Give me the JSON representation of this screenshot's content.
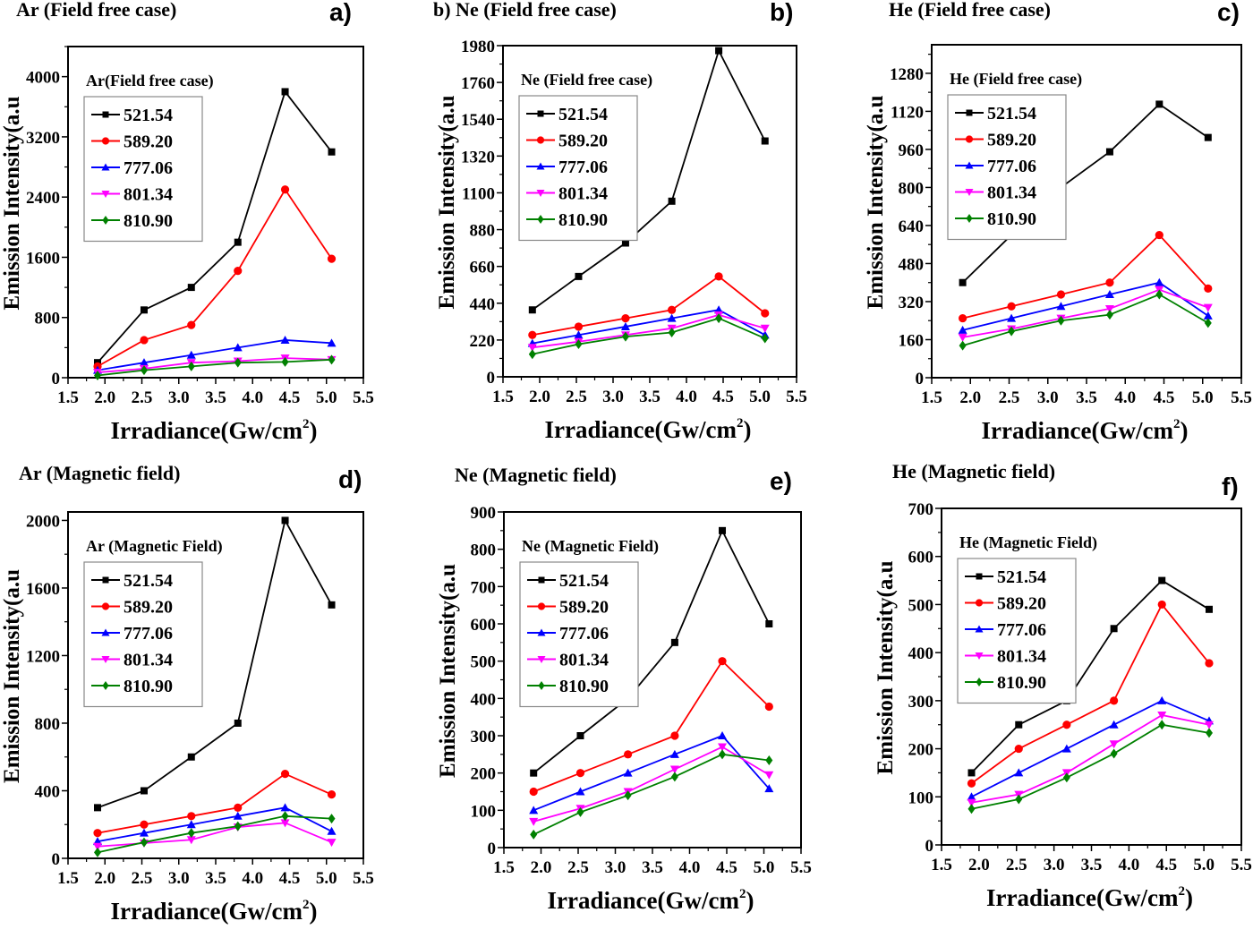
{
  "chart_data": [
    {
      "id": "a",
      "type": "line",
      "title": "Ar (Field free case)",
      "panel_letter": "a)",
      "legend_title": "Ar(Field free case)",
      "legend_position": "top-left",
      "xlabel": "Irradiance(Gw/cm",
      "xlabel_sup": "2",
      "xlabel_close": ")",
      "ylabel": "Emission Intensity(a.u",
      "xlim": [
        1.5,
        5.5
      ],
      "ylim": [
        0,
        4000
      ],
      "ymax_axis": 4400,
      "xticks": [
        "1.5",
        "2.0",
        "2.5",
        "3.0",
        "3.5",
        "4.0",
        "4.5",
        "5.0",
        "5.5"
      ],
      "yticks": [
        "0",
        "800",
        "1600",
        "2400",
        "3200",
        "4000"
      ],
      "x": [
        1.9,
        2.53,
        3.17,
        3.8,
        4.44,
        5.07
      ],
      "series": [
        {
          "name": "521.54",
          "color": "#000000",
          "marker": "square",
          "values": [
            200,
            900,
            1200,
            1800,
            3800,
            3000
          ]
        },
        {
          "name": "589.20",
          "color": "#ff0000",
          "marker": "circle",
          "values": [
            150,
            500,
            700,
            1420,
            2500,
            1580
          ]
        },
        {
          "name": "777.06",
          "color": "#0000ff",
          "marker": "triangle-up",
          "values": [
            100,
            200,
            300,
            400,
            500,
            460
          ]
        },
        {
          "name": "801.34",
          "color": "#ff00ff",
          "marker": "triangle-down",
          "values": [
            70,
            120,
            200,
            220,
            260,
            240
          ]
        },
        {
          "name": "810.90",
          "color": "#008000",
          "marker": "diamond",
          "values": [
            30,
            100,
            150,
            200,
            210,
            240
          ]
        }
      ]
    },
    {
      "id": "b",
      "type": "line",
      "title": "b) Ne (Field free case)",
      "panel_letter": "b)",
      "legend_title": "Ne (Field free case)",
      "legend_position": "top-left",
      "xlabel": "Irradiance(Gw/cm",
      "xlabel_sup": "2",
      "xlabel_close": ")",
      "ylabel": "Emission Intensity(a.u",
      "xlim": [
        1.5,
        5.5
      ],
      "ylim": [
        0,
        1980
      ],
      "ymax_axis": 1980,
      "xticks": [
        "1.5",
        "2.0",
        "2.5",
        "3.0",
        "3.5",
        "4.0",
        "4.5",
        "5.0",
        "5.5"
      ],
      "yticks": [
        "0",
        "220",
        "440",
        "660",
        "880",
        "1100",
        "1320",
        "1540",
        "1760",
        "1980"
      ],
      "x": [
        1.9,
        2.53,
        3.17,
        3.8,
        4.44,
        5.07
      ],
      "series": [
        {
          "name": "521.54",
          "color": "#000000",
          "marker": "square",
          "values": [
            400,
            600,
            800,
            1050,
            1950,
            1410
          ]
        },
        {
          "name": "589.20",
          "color": "#ff0000",
          "marker": "circle",
          "values": [
            250,
            300,
            350,
            400,
            600,
            380
          ]
        },
        {
          "name": "777.06",
          "color": "#0000ff",
          "marker": "triangle-up",
          "values": [
            200,
            250,
            300,
            350,
            400,
            250
          ]
        },
        {
          "name": "801.34",
          "color": "#ff00ff",
          "marker": "triangle-down",
          "values": [
            175,
            210,
            250,
            290,
            370,
            290
          ]
        },
        {
          "name": "810.90",
          "color": "#008000",
          "marker": "diamond",
          "values": [
            135,
            195,
            240,
            265,
            350,
            230
          ]
        }
      ]
    },
    {
      "id": "c",
      "type": "line",
      "title": "He (Field free case)",
      "panel_letter": "c)",
      "legend_title": "He (Field free case)",
      "legend_position": "top-left",
      "xlabel": "Irradiance(Gw/cm",
      "xlabel_sup": "2",
      "xlabel_close": ")",
      "ylabel": "Emission Intensity(a.u",
      "xlim": [
        1.5,
        5.5
      ],
      "ylim": [
        0,
        1280
      ],
      "ymax_axis": 1400,
      "xticks": [
        "1.5",
        "2.0",
        "2.5",
        "3.0",
        "3.5",
        "4.0",
        "4.5",
        "5.0",
        "5.5"
      ],
      "yticks": [
        "0",
        "160",
        "320",
        "480",
        "640",
        "800",
        "960",
        "1120",
        "1280"
      ],
      "x": [
        1.9,
        2.53,
        3.17,
        3.8,
        4.44,
        5.07
      ],
      "series": [
        {
          "name": "521.54",
          "color": "#000000",
          "marker": "square",
          "values": [
            400,
            600,
            800,
            950,
            1150,
            1010
          ]
        },
        {
          "name": "589.20",
          "color": "#ff0000",
          "marker": "circle",
          "values": [
            250,
            300,
            350,
            400,
            600,
            375
          ]
        },
        {
          "name": "777.06",
          "color": "#0000ff",
          "marker": "triangle-up",
          "values": [
            200,
            250,
            300,
            350,
            400,
            260
          ]
        },
        {
          "name": "801.34",
          "color": "#ff00ff",
          "marker": "triangle-down",
          "values": [
            170,
            205,
            250,
            290,
            370,
            295
          ]
        },
        {
          "name": "810.90",
          "color": "#008000",
          "marker": "diamond",
          "values": [
            135,
            195,
            240,
            265,
            350,
            230
          ]
        }
      ]
    },
    {
      "id": "d",
      "type": "line",
      "title": "Ar (Magnetic field)",
      "panel_letter": "d)",
      "legend_title": "Ar (Magnetic Field)",
      "legend_position": "top-left",
      "xlabel": "Irradiance(Gw/cm",
      "xlabel_sup": "2",
      "xlabel_close": ")",
      "ylabel": "Emission Intensity(a.u",
      "xlim": [
        1.5,
        5.5
      ],
      "ylim": [
        0,
        2000
      ],
      "ymax_axis": 2050,
      "xticks": [
        "1.5",
        "2.0",
        "2.5",
        "3.0",
        "3.5",
        "4.0",
        "4.5",
        "5.0",
        "5.5"
      ],
      "yticks": [
        "0",
        "400",
        "800",
        "1200",
        "1600",
        "2000"
      ],
      "x": [
        1.9,
        2.53,
        3.17,
        3.8,
        4.44,
        5.07
      ],
      "series": [
        {
          "name": "521.54",
          "color": "#000000",
          "marker": "square",
          "values": [
            300,
            400,
            600,
            800,
            2000,
            1500
          ]
        },
        {
          "name": "589.20",
          "color": "#ff0000",
          "marker": "circle",
          "values": [
            150,
            200,
            250,
            300,
            500,
            378
          ]
        },
        {
          "name": "777.06",
          "color": "#0000ff",
          "marker": "triangle-up",
          "values": [
            100,
            150,
            200,
            250,
            300,
            160
          ]
        },
        {
          "name": "801.34",
          "color": "#ff00ff",
          "marker": "triangle-down",
          "values": [
            70,
            90,
            110,
            185,
            210,
            95
          ]
        },
        {
          "name": "810.90",
          "color": "#008000",
          "marker": "diamond",
          "values": [
            35,
            95,
            150,
            190,
            250,
            235
          ]
        }
      ]
    },
    {
      "id": "e",
      "type": "line",
      "title": "Ne (Magnetic field)",
      "panel_letter": "e)",
      "legend_title": "Ne (Magnetic Field)",
      "legend_position": "top-left",
      "xlabel": "Irradiance(Gw/cm",
      "xlabel_sup": "2",
      "xlabel_close": ")",
      "ylabel": "Emission Intensity(a.u",
      "xlim": [
        1.5,
        5.5
      ],
      "ylim": [
        0,
        900
      ],
      "ymax_axis": 900,
      "xticks": [
        "1.5",
        "2.0",
        "2.5",
        "3.0",
        "3.5",
        "4.0",
        "4.5",
        "5.0",
        "5.5"
      ],
      "yticks": [
        "0",
        "100",
        "200",
        "300",
        "400",
        "500",
        "600",
        "700",
        "800",
        "900"
      ],
      "x": [
        1.9,
        2.53,
        3.17,
        3.8,
        4.44,
        5.07
      ],
      "series": [
        {
          "name": "521.54",
          "color": "#000000",
          "marker": "square",
          "values": [
            200,
            300,
            400,
            550,
            850,
            600
          ]
        },
        {
          "name": "589.20",
          "color": "#ff0000",
          "marker": "circle",
          "values": [
            150,
            200,
            250,
            300,
            500,
            378
          ]
        },
        {
          "name": "777.06",
          "color": "#0000ff",
          "marker": "triangle-up",
          "values": [
            100,
            150,
            200,
            250,
            300,
            158
          ]
        },
        {
          "name": "801.34",
          "color": "#ff00ff",
          "marker": "triangle-down",
          "values": [
            70,
            105,
            150,
            210,
            270,
            195
          ]
        },
        {
          "name": "810.90",
          "color": "#008000",
          "marker": "diamond",
          "values": [
            35,
            95,
            140,
            190,
            250,
            234
          ]
        }
      ]
    },
    {
      "id": "f",
      "type": "line",
      "title": "He (Magnetic field)",
      "panel_letter": "f)",
      "legend_title": "He (Magnetic Field)",
      "legend_position": "top-left",
      "xlabel": "Irradiance(Gw/cm",
      "xlabel_sup": "2",
      "xlabel_close": ")",
      "ylabel": "Emission Intensity(a.u",
      "xlim": [
        1.5,
        5.5
      ],
      "ylim": [
        0,
        700
      ],
      "ymax_axis": 700,
      "xticks": [
        "1.5",
        "2.0",
        "2.5",
        "3.0",
        "3.5",
        "4.0",
        "4.5",
        "5.0",
        "5.5"
      ],
      "yticks": [
        "0",
        "100",
        "200",
        "300",
        "400",
        "500",
        "600",
        "700"
      ],
      "x": [
        1.9,
        2.53,
        3.17,
        3.8,
        4.44,
        5.07
      ],
      "series": [
        {
          "name": "521.54",
          "color": "#000000",
          "marker": "square",
          "values": [
            150,
            250,
            300,
            450,
            550,
            490
          ]
        },
        {
          "name": "589.20",
          "color": "#ff0000",
          "marker": "circle",
          "values": [
            128,
            200,
            250,
            300,
            500,
            378
          ]
        },
        {
          "name": "777.06",
          "color": "#0000ff",
          "marker": "triangle-up",
          "values": [
            100,
            150,
            200,
            250,
            300,
            258
          ]
        },
        {
          "name": "801.34",
          "color": "#ff00ff",
          "marker": "triangle-down",
          "values": [
            88,
            105,
            150,
            210,
            270,
            250
          ]
        },
        {
          "name": "810.90",
          "color": "#008000",
          "marker": "diamond",
          "values": [
            75,
            95,
            140,
            190,
            250,
            233
          ]
        }
      ]
    }
  ]
}
